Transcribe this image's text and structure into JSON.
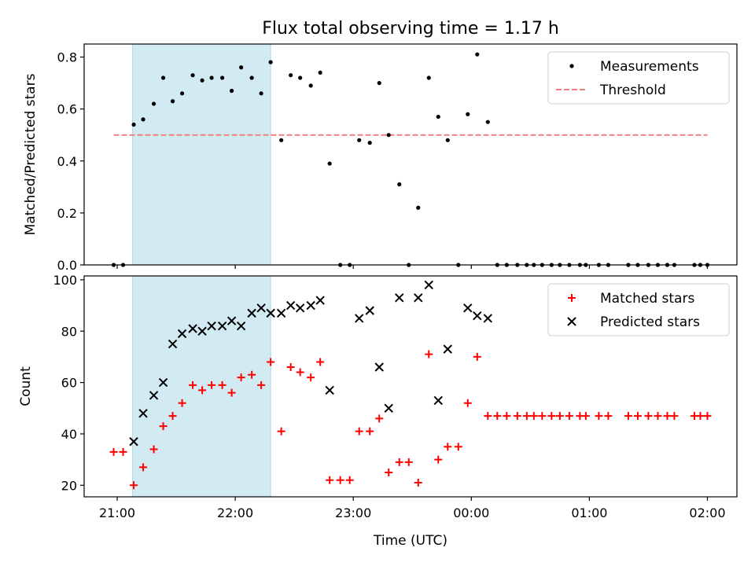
{
  "chart_data": {
    "title": "Flux total observing time = 1.17 h",
    "xlabel": "Time (UTC)",
    "x_tick_labels": [
      "21:00",
      "22:00",
      "23:00",
      "00:00",
      "01:00",
      "02:00"
    ],
    "x_tick_hours": [
      21,
      22,
      23,
      24,
      25,
      26
    ],
    "xlim_hours": [
      20.72,
      26.25
    ],
    "highlight_span_hours": [
      21.13,
      22.3
    ],
    "highlight_color": "#add8e6",
    "panels": [
      {
        "type": "scatter",
        "ylabel": "Matched/Predicted stars",
        "ylim": [
          0,
          0.85
        ],
        "yticks": [
          0.0,
          0.2,
          0.4,
          0.6,
          0.8
        ],
        "y_tick_labels": [
          "0.0",
          "0.2",
          "0.4",
          "0.6",
          "0.8"
        ],
        "legend_position": "top-right",
        "threshold": {
          "name": "Threshold",
          "value": 0.5,
          "x_range": [
            20.97,
            26.0
          ],
          "color": "#f08080"
        },
        "series": [
          {
            "name": "Measurements",
            "marker": "dot",
            "color": "#000000",
            "x": [
              20.97,
              21.05,
              21.14,
              21.22,
              21.31,
              21.39,
              21.47,
              21.55,
              21.64,
              21.72,
              21.8,
              21.89,
              21.97,
              22.05,
              22.14,
              22.22,
              22.3,
              22.39,
              22.47,
              22.55,
              22.64,
              22.72,
              22.8,
              22.89,
              22.97,
              23.05,
              23.14,
              23.22,
              23.3,
              23.39,
              23.47,
              23.55,
              23.64,
              23.72,
              23.8,
              23.89,
              23.97,
              24.05,
              24.14,
              24.22,
              24.3,
              24.39,
              24.47,
              24.53,
              24.6,
              24.68,
              24.75,
              24.83,
              24.92,
              24.97,
              25.08,
              25.16,
              25.33,
              25.41,
              25.5,
              25.58,
              25.66,
              25.72,
              25.89,
              25.94,
              26.0
            ],
            "y": [
              0.0,
              0.0,
              0.54,
              0.56,
              0.62,
              0.72,
              0.63,
              0.66,
              0.73,
              0.71,
              0.72,
              0.72,
              0.67,
              0.76,
              0.72,
              0.66,
              0.78,
              0.48,
              0.73,
              0.72,
              0.69,
              0.74,
              0.39,
              0.0,
              0.0,
              0.48,
              0.47,
              0.7,
              0.5,
              0.31,
              0.0,
              0.22,
              0.72,
              0.57,
              0.48,
              0.0,
              0.58,
              0.81,
              0.55,
              0.0,
              0.0,
              0.0,
              0.0,
              0.0,
              0.0,
              0.0,
              0.0,
              0.0,
              0.0,
              0.0,
              0.0,
              0.0,
              0.0,
              0.0,
              0.0,
              0.0,
              0.0,
              0.0,
              0.0,
              0.0,
              0.0
            ]
          }
        ]
      },
      {
        "type": "scatter",
        "ylabel": "Count",
        "ylim": [
          15.5,
          101.5
        ],
        "yticks": [
          20,
          40,
          60,
          80,
          100
        ],
        "y_tick_labels": [
          "20",
          "40",
          "60",
          "80",
          "100"
        ],
        "legend_position": "top-right",
        "series": [
          {
            "name": "Matched stars",
            "marker": "plus",
            "color": "#ff0000",
            "x": [
              20.97,
              21.05,
              21.14,
              21.22,
              21.31,
              21.39,
              21.47,
              21.55,
              21.64,
              21.72,
              21.8,
              21.89,
              21.97,
              22.05,
              22.14,
              22.22,
              22.3,
              22.39,
              22.47,
              22.55,
              22.64,
              22.72,
              22.8,
              22.89,
              22.97,
              23.05,
              23.14,
              23.22,
              23.3,
              23.39,
              23.47,
              23.55,
              23.64,
              23.72,
              23.8,
              23.89,
              23.97,
              24.05,
              24.14,
              24.22,
              24.3,
              24.39,
              24.47,
              24.53,
              24.6,
              24.68,
              24.75,
              24.83,
              24.92,
              24.97,
              25.08,
              25.16,
              25.33,
              25.41,
              25.5,
              25.58,
              25.66,
              25.72,
              25.89,
              25.94,
              26.0
            ],
            "y": [
              33,
              33,
              20,
              27,
              34,
              43,
              47,
              52,
              59,
              57,
              59,
              59,
              56,
              62,
              63,
              59,
              68,
              41,
              66,
              64,
              62,
              68,
              22,
              22,
              22,
              41,
              41,
              46,
              25,
              29,
              29,
              21,
              71,
              30,
              35,
              35,
              52,
              70,
              47,
              47,
              47,
              47,
              47,
              47,
              47,
              47,
              47,
              47,
              47,
              47,
              47,
              47,
              47,
              47,
              47,
              47,
              47,
              47,
              47,
              47,
              47
            ]
          },
          {
            "name": "Predicted stars",
            "marker": "x",
            "color": "#000000",
            "x": [
              21.14,
              21.22,
              21.31,
              21.39,
              21.47,
              21.55,
              21.64,
              21.72,
              21.8,
              21.89,
              21.97,
              22.05,
              22.14,
              22.22,
              22.3,
              22.39,
              22.47,
              22.55,
              22.64,
              22.72,
              22.8,
              23.05,
              23.14,
              23.22,
              23.3,
              23.39,
              23.55,
              23.64,
              23.72,
              23.8,
              23.97,
              24.05,
              24.14
            ],
            "y": [
              37,
              48,
              55,
              60,
              75,
              79,
              81,
              80,
              82,
              82,
              84,
              82,
              87,
              89,
              87,
              87,
              90,
              89,
              90,
              92,
              57,
              85,
              88,
              66,
              50,
              93,
              93,
              98,
              53,
              73,
              89,
              86,
              85
            ]
          }
        ]
      }
    ]
  }
}
